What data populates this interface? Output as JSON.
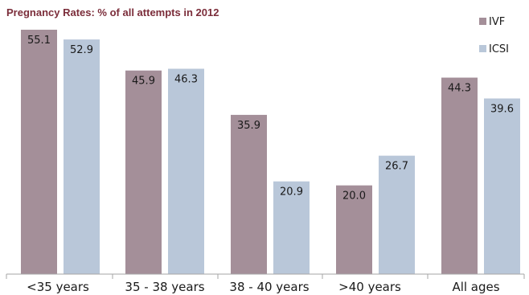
{
  "colors": {
    "title": "#7b2d3a",
    "ivf": "#a48f99",
    "icsi": "#b9c7d9",
    "axis": "#a6a6a6"
  },
  "chart_data": {
    "type": "bar",
    "title": "Pregnancy Rates: % of all attempts in 2012",
    "categories": [
      "<35 years",
      "35 - 38 years",
      "38 - 40 years",
      ">40 years",
      "All ages"
    ],
    "series": [
      {
        "name": "IVF",
        "values": [
          55.1,
          45.9,
          35.9,
          20.0,
          44.3
        ],
        "labels": [
          "55.1",
          "45.9",
          "35.9",
          "20.0",
          "44.3"
        ]
      },
      {
        "name": "ICSI",
        "values": [
          52.9,
          46.3,
          20.9,
          26.7,
          39.6
        ],
        "labels": [
          "52.9",
          "46.3",
          "20.9",
          "26.7",
          "39.6"
        ]
      }
    ],
    "ylim": [
      0,
      56
    ],
    "grid": false,
    "legend_position": "top-right",
    "xlabel": "",
    "ylabel": ""
  }
}
